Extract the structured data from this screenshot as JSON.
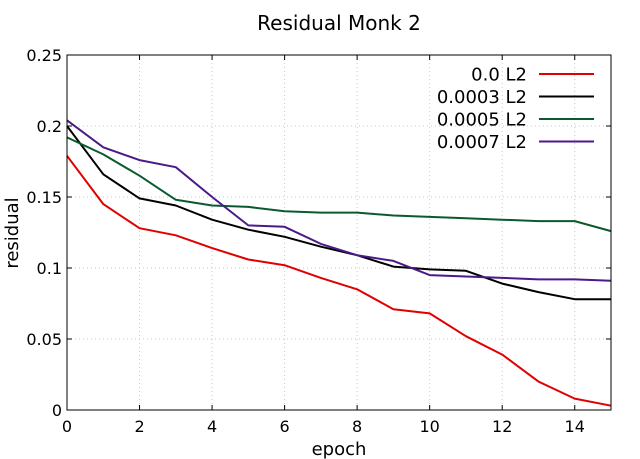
{
  "chart_data": {
    "type": "line",
    "title": "Residual Monk 2",
    "xlabel": "epoch",
    "ylabel": "residual",
    "xlim": [
      0,
      15
    ],
    "ylim": [
      0,
      0.25
    ],
    "xticks": [
      0,
      2,
      4,
      6,
      8,
      10,
      12,
      14
    ],
    "xtick_labels": [
      "0",
      "2",
      "4",
      "6",
      "8",
      "10",
      "12",
      "14"
    ],
    "yticks": [
      0,
      0.05,
      0.1,
      0.15,
      0.2,
      0.25
    ],
    "ytick_labels": [
      "0",
      "0.05",
      "0.1",
      "0.15",
      "0.2",
      "0.25"
    ],
    "grid": true,
    "legend_position": "top-right",
    "x": [
      0,
      1,
      2,
      3,
      4,
      5,
      6,
      7,
      8,
      9,
      10,
      11,
      12,
      13,
      14,
      15
    ],
    "series": [
      {
        "name": "0.0 L2",
        "color": "#e00000",
        "values": [
          0.179,
          0.145,
          0.128,
          0.123,
          0.114,
          0.106,
          0.102,
          0.093,
          0.085,
          0.071,
          0.068,
          0.052,
          0.039,
          0.02,
          0.008,
          0.003
        ]
      },
      {
        "name": "0.0003 L2",
        "color": "#000000",
        "values": [
          0.2,
          0.166,
          0.149,
          0.144,
          0.134,
          0.127,
          0.122,
          0.115,
          0.109,
          0.101,
          0.099,
          0.098,
          0.089,
          0.083,
          0.078,
          0.078
        ]
      },
      {
        "name": "0.0005 L2",
        "color": "#0b5a2e",
        "values": [
          0.192,
          0.18,
          0.165,
          0.148,
          0.144,
          0.143,
          0.14,
          0.139,
          0.139,
          0.137,
          0.136,
          0.135,
          0.134,
          0.133,
          0.133,
          0.126
        ]
      },
      {
        "name": "0.0007 L2",
        "color": "#4b1a8a",
        "values": [
          0.204,
          0.185,
          0.176,
          0.171,
          0.15,
          0.13,
          0.129,
          0.117,
          0.109,
          0.105,
          0.095,
          0.094,
          0.093,
          0.092,
          0.092,
          0.091
        ]
      }
    ]
  }
}
